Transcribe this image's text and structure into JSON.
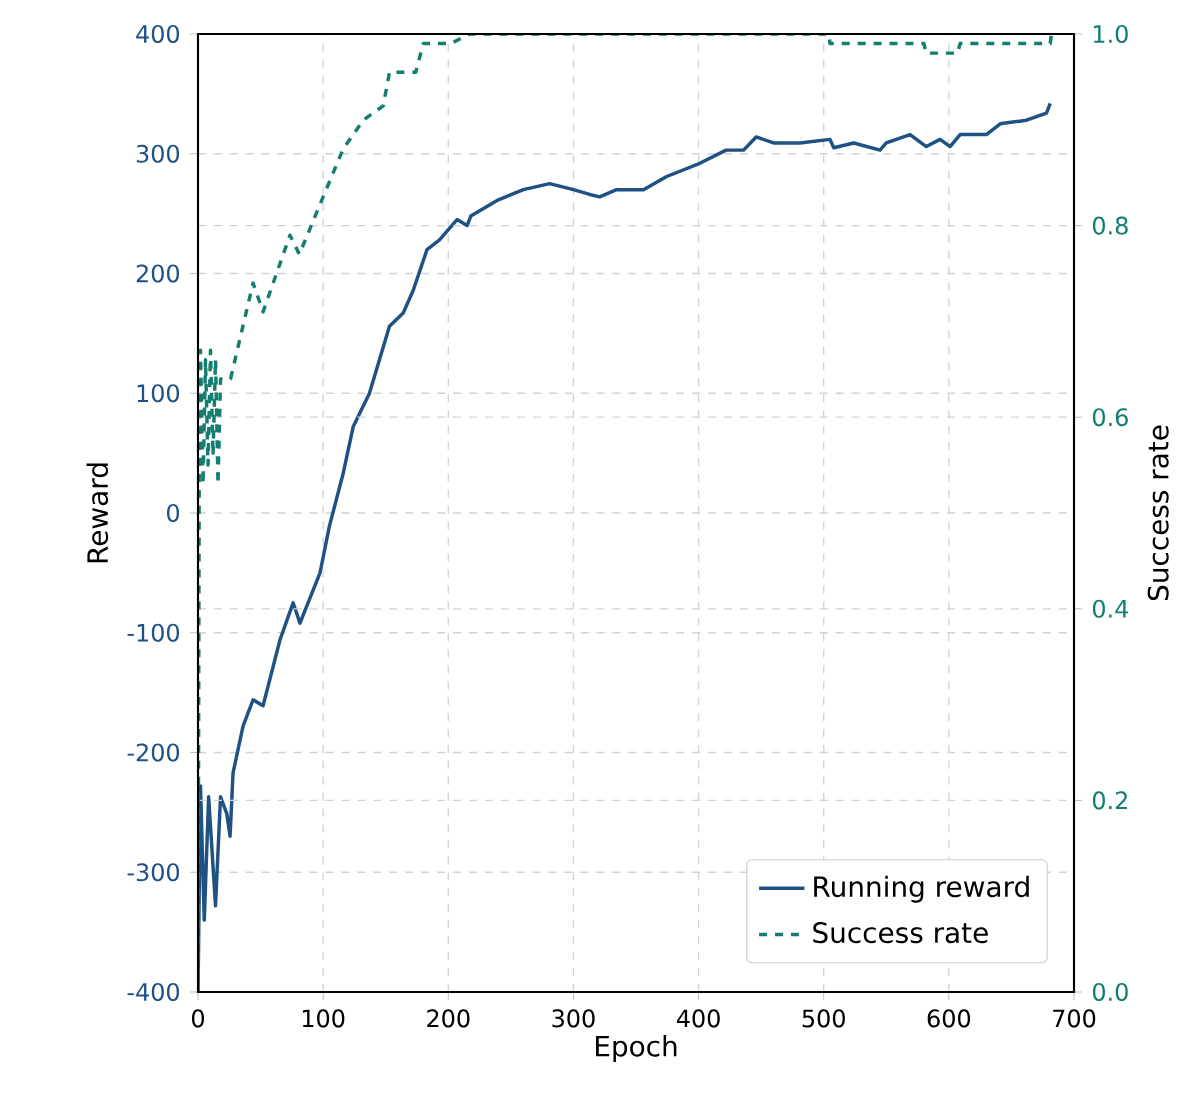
{
  "chart_data": {
    "type": "line",
    "xlabel": "Epoch",
    "ylabel": "Reward",
    "y2label": "Success rate",
    "xlim": [
      0,
      700
    ],
    "ylim": [
      -400,
      400
    ],
    "y2lim": [
      0,
      1
    ],
    "xticks": [
      0,
      100,
      200,
      300,
      400,
      500,
      600,
      700
    ],
    "yticks": [
      -400,
      -300,
      -200,
      -100,
      0,
      100,
      200,
      300,
      400
    ],
    "y2ticks": [
      {
        "value": 0,
        "label": "0.0"
      },
      0.2,
      0.4,
      0.6,
      0.8,
      {
        "value": 1,
        "label": "1.0"
      }
    ],
    "grid": true,
    "legend": "bottom right",
    "marker": "none",
    "series": [
      {
        "name": "Running reward",
        "color": "#1f5185",
        "line_style": "solid",
        "axis": "y",
        "x": [
          0,
          2,
          5,
          8.5,
          14,
          18,
          23,
          25.6,
          28,
          36,
          44,
          52,
          65.5,
          76,
          81.5,
          97.5,
          105,
          116,
          124,
          137,
          153,
          164,
          172,
          183,
          193,
          207,
          215,
          218,
          239,
          260,
          281,
          300,
          313,
          321,
          334.5,
          356,
          374.5,
          401,
          422,
          436,
          446,
          460,
          481,
          505,
          508,
          524,
          545,
          550,
          569,
          582,
          593,
          601,
          609,
          630,
          641,
          662,
          678,
          681
        ],
        "values": [
          -400,
          -228,
          -340,
          -237,
          -328,
          -237,
          -251,
          -270,
          -217,
          -178,
          -156,
          -161,
          -106,
          -75,
          -92,
          -50,
          -11,
          33,
          72,
          100,
          156,
          167,
          186,
          220,
          228,
          245,
          240,
          248,
          261,
          270,
          275,
          270,
          266,
          264,
          270,
          270,
          281,
          292,
          303,
          303,
          314,
          309,
          309,
          312,
          305,
          309,
          303,
          309,
          316,
          306,
          312,
          306,
          316,
          316,
          325,
          328,
          334,
          342
        ]
      },
      {
        "name": "Success rate",
        "color": "#137d70",
        "line_style": "dashed",
        "axis": "y2",
        "x": [
          0,
          1,
          2,
          4,
          6,
          8,
          10,
          12,
          14,
          16,
          18,
          26,
          44,
          52,
          73.5,
          81,
          100,
          116,
          132,
          148,
          153,
          174,
          180,
          202,
          217,
          504,
          505,
          580,
          582,
          607,
          609,
          681,
          682
        ],
        "values": [
          0.0,
          0.55,
          0.67,
          0.53,
          0.66,
          0.55,
          0.67,
          0.56,
          0.66,
          0.53,
          0.64,
          0.64,
          0.74,
          0.71,
          0.79,
          0.77,
          0.83,
          0.88,
          0.91,
          0.925,
          0.96,
          0.96,
          0.99,
          0.99,
          1.0,
          1.0,
          0.99,
          0.99,
          0.98,
          0.98,
          0.99,
          0.99,
          1.0
        ]
      }
    ]
  }
}
